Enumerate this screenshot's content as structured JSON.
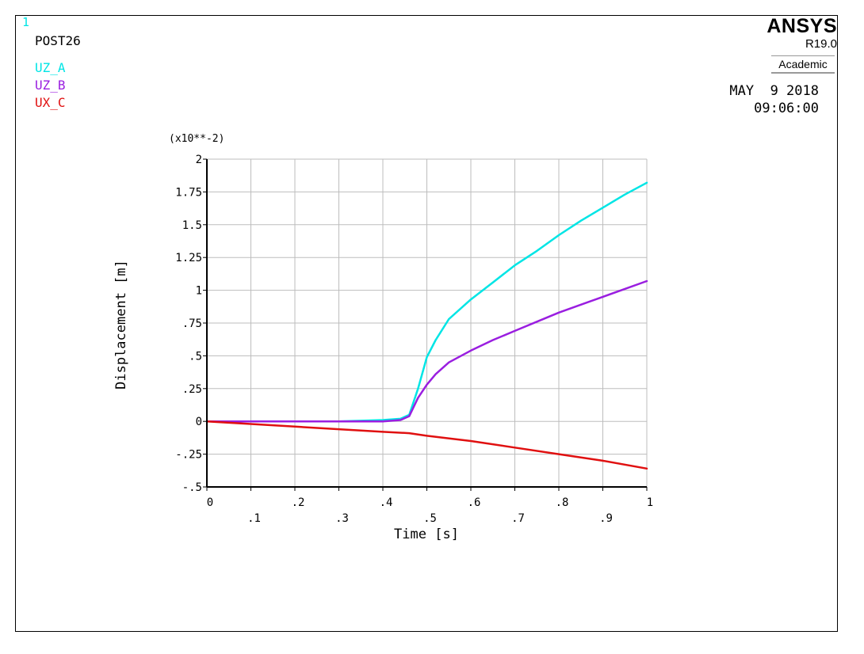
{
  "window_number": "1",
  "header": {
    "title": "POST26",
    "brand": "ANSYS",
    "release": "R19.0",
    "edition": "Academic",
    "date": "MAY  9 2018",
    "time": "09:06:00"
  },
  "legend": [
    {
      "label": "UZ_A",
      "color": "#00e5e5"
    },
    {
      "label": "UZ_B",
      "color": "#9a1ee0"
    },
    {
      "label": "UX_C",
      "color": "#e01010"
    }
  ],
  "chart_data": {
    "type": "line",
    "xlabel": "Time  [s]",
    "ylabel": "Displacement  [m]",
    "multiplier": "(x10**-2)",
    "xlim": [
      0,
      1
    ],
    "ylim": [
      -0.5,
      2
    ],
    "grid": true,
    "x_ticks": [
      {
        "value": 0,
        "label": "0"
      },
      {
        "value": 0.1,
        "label": ".1"
      },
      {
        "value": 0.2,
        "label": ".2"
      },
      {
        "value": 0.3,
        "label": ".3"
      },
      {
        "value": 0.4,
        "label": ".4"
      },
      {
        "value": 0.5,
        "label": ".5"
      },
      {
        "value": 0.6,
        "label": ".6"
      },
      {
        "value": 0.7,
        "label": ".7"
      },
      {
        "value": 0.8,
        "label": ".8"
      },
      {
        "value": 0.9,
        "label": ".9"
      },
      {
        "value": 1,
        "label": "1"
      }
    ],
    "y_ticks": [
      {
        "value": -0.5,
        "label": "-.5"
      },
      {
        "value": -0.25,
        "label": "-.25"
      },
      {
        "value": 0,
        "label": "0"
      },
      {
        "value": 0.25,
        "label": ".25"
      },
      {
        "value": 0.5,
        "label": ".5"
      },
      {
        "value": 0.75,
        "label": ".75"
      },
      {
        "value": 1,
        "label": "1"
      },
      {
        "value": 1.25,
        "label": "1.25"
      },
      {
        "value": 1.5,
        "label": "1.5"
      },
      {
        "value": 1.75,
        "label": "1.75"
      },
      {
        "value": 2,
        "label": "2"
      }
    ],
    "series": [
      {
        "name": "UZ_A",
        "color": "#00e5e5",
        "x": [
          0,
          0.1,
          0.2,
          0.3,
          0.4,
          0.44,
          0.46,
          0.48,
          0.5,
          0.52,
          0.55,
          0.6,
          0.65,
          0.7,
          0.75,
          0.8,
          0.85,
          0.9,
          0.95,
          1.0
        ],
        "y": [
          0,
          0,
          0,
          0,
          0.01,
          0.02,
          0.05,
          0.25,
          0.49,
          0.62,
          0.78,
          0.93,
          1.06,
          1.19,
          1.3,
          1.42,
          1.53,
          1.63,
          1.73,
          1.82
        ]
      },
      {
        "name": "UZ_B",
        "color": "#9a1ee0",
        "x": [
          0,
          0.1,
          0.2,
          0.3,
          0.4,
          0.44,
          0.46,
          0.48,
          0.5,
          0.52,
          0.55,
          0.6,
          0.65,
          0.7,
          0.75,
          0.8,
          0.85,
          0.9,
          0.95,
          1.0
        ],
        "y": [
          0,
          0,
          0,
          0,
          0,
          0.01,
          0.04,
          0.18,
          0.28,
          0.36,
          0.45,
          0.54,
          0.62,
          0.69,
          0.76,
          0.83,
          0.89,
          0.95,
          1.01,
          1.07
        ]
      },
      {
        "name": "UX_C",
        "color": "#e01010",
        "x": [
          0,
          0.1,
          0.2,
          0.3,
          0.4,
          0.46,
          0.5,
          0.6,
          0.7,
          0.8,
          0.9,
          1.0
        ],
        "y": [
          0,
          -0.02,
          -0.04,
          -0.06,
          -0.08,
          -0.09,
          -0.11,
          -0.15,
          -0.2,
          -0.25,
          -0.3,
          -0.36
        ]
      }
    ]
  }
}
